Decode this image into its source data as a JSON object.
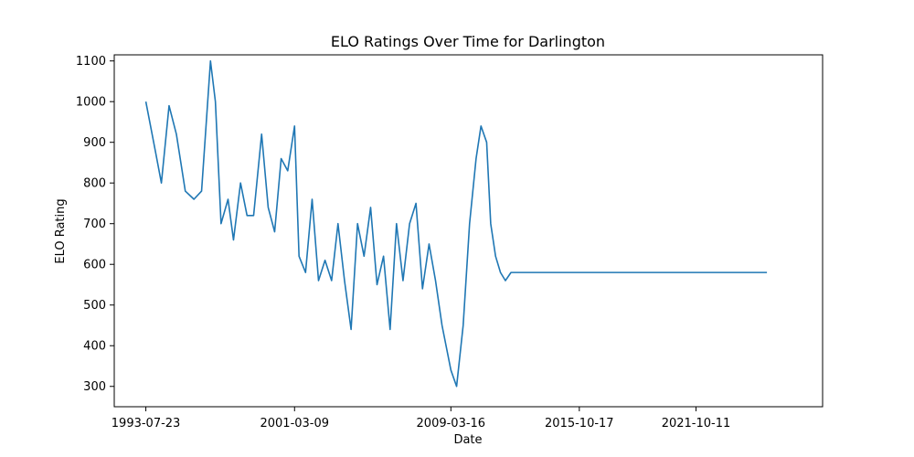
{
  "chart_data": {
    "type": "line",
    "title": "ELO Ratings Over Time for Darlington",
    "xlabel": "Date",
    "ylabel": "ELO Rating",
    "x_tick_labels": [
      "1993-07-23",
      "2001-03-09",
      "2009-03-16",
      "2015-10-17",
      "2021-10-11"
    ],
    "y_tick_labels": [
      "300",
      "400",
      "500",
      "600",
      "700",
      "800",
      "900",
      "1000",
      "1100"
    ],
    "ylim": [
      250,
      1115
    ],
    "xlim": [
      "1991-12-09",
      "2028-04-09"
    ],
    "grid": false,
    "legend": "none",
    "line_color": "#1f77b4",
    "series": [
      {
        "x": [
          "1993-07-23",
          "1994-01-15",
          "1994-05-10",
          "1994-10-01",
          "1995-02-15",
          "1995-08-01",
          "1996-01-10",
          "1996-06-01",
          "1996-11-15",
          "1997-02-15",
          "1997-06-01",
          "1997-10-10",
          "1998-01-20",
          "1998-06-01",
          "1998-10-01",
          "1999-02-01",
          "1999-07-01",
          "1999-11-01",
          "2000-03-01",
          "2000-07-01",
          "2000-11-01",
          "2001-03-09",
          "2001-06-01",
          "2001-10-01",
          "2002-02-01",
          "2002-06-01",
          "2002-10-01",
          "2003-02-01",
          "2003-06-01",
          "2003-10-01",
          "2004-02-01",
          "2004-06-01",
          "2004-10-01",
          "2005-02-01",
          "2005-06-01",
          "2005-10-01",
          "2006-02-01",
          "2006-06-01",
          "2006-10-01",
          "2007-02-01",
          "2007-06-01",
          "2007-10-01",
          "2008-02-01",
          "2008-06-01",
          "2008-10-01",
          "2009-03-16",
          "2009-07-01",
          "2009-11-01",
          "2010-03-01",
          "2010-07-01",
          "2010-10-01",
          "2011-01-15",
          "2011-04-01",
          "2011-07-01",
          "2011-10-01",
          "2012-01-01",
          "2012-04-15",
          "2012-07-01",
          "2012-10-10",
          "2013-01-15",
          "2025-06-01"
        ],
        "y": [
          1000,
          880,
          800,
          990,
          920,
          780,
          760,
          780,
          1100,
          1000,
          700,
          760,
          660,
          800,
          720,
          720,
          920,
          740,
          680,
          860,
          830,
          940,
          620,
          580,
          760,
          560,
          610,
          560,
          700,
          560,
          440,
          700,
          620,
          740,
          550,
          620,
          440,
          700,
          560,
          700,
          750,
          540,
          650,
          560,
          450,
          340,
          300,
          450,
          700,
          860,
          940,
          900,
          700,
          620,
          580,
          560,
          580,
          580,
          580,
          580,
          580
        ]
      }
    ]
  }
}
